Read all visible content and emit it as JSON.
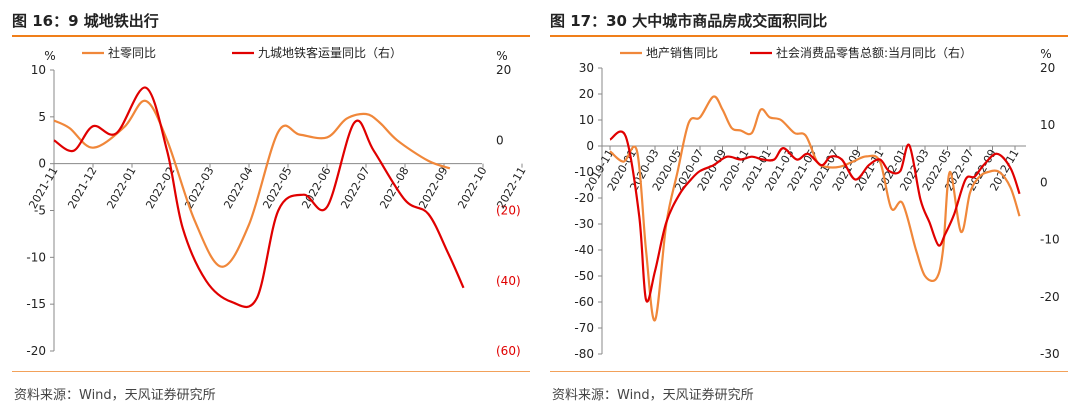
{
  "colors": {
    "orange": "#f0873a",
    "red": "#e00000",
    "accent": "#f07f1a"
  },
  "charts": [
    {
      "id": "left",
      "title": "图 16：9 城地铁出行",
      "source": "资料来源：Wind，天风证券研究所",
      "chart_data": {
        "type": "line",
        "x": [
          "2021-11",
          "2021-12",
          "2022-01",
          "2022-02",
          "2022-03",
          "2022-04",
          "2022-05",
          "2022-06",
          "2022-07",
          "2022-08",
          "2022-09",
          "2022-10",
          "2022-11"
        ],
        "yleft": {
          "unit": "%",
          "ylim": [
            -20,
            10
          ],
          "ticks": [
            {
              "v": 10,
              "t": "10"
            },
            {
              "v": 5,
              "t": "5"
            },
            {
              "v": 0,
              "t": "0"
            },
            {
              "v": -5,
              "t": "-5"
            },
            {
              "v": -10,
              "t": "-10"
            },
            {
              "v": -15,
              "t": "-15"
            },
            {
              "v": -20,
              "t": "-20"
            }
          ]
        },
        "yright": {
          "unit": "%",
          "ylim": [
            -60,
            20
          ],
          "ticks": [
            {
              "v": 20,
              "t": "20"
            },
            {
              "v": 0,
              "t": "0"
            },
            {
              "v": -20,
              "t": "(20)"
            },
            {
              "v": -40,
              "t": "(40)"
            },
            {
              "v": -60,
              "t": "(60)"
            }
          ]
        },
        "legend": "top",
        "grid": false,
        "series": [
          {
            "name": "社零同比",
            "axis": "left",
            "color": "#f0873a",
            "x": [
              0,
              0.4,
              1,
              1.8,
              2.35,
              2.9,
              3.6,
              4.3,
              5,
              5.75,
              6.3,
              7,
              7.5,
              8,
              8.35,
              8.8,
              9.6,
              10.15
            ],
            "y": [
              4.6,
              3.8,
              1.7,
              3.9,
              6.7,
              2.5,
              -6,
              -11,
              -6.5,
              3.4,
              3.1,
              2.8,
              4.8,
              5.3,
              4.4,
              2.5,
              0.3,
              -0.5
            ]
          },
          {
            "name": "九城地铁客运量同比（右）",
            "axis": "right",
            "color": "#e00000",
            "x": [
              0,
              0.5,
              1.0,
              1.6,
              2.35,
              2.9,
              3.3,
              3.9,
              4.55,
              5.2,
              5.75,
              6.4,
              7,
              7.7,
              8.2,
              9,
              9.6,
              10.1,
              10.5
            ],
            "y": [
              0,
              -3,
              4,
              2,
              15,
              -3,
              -25,
              -40,
              -46,
              -45,
              -20,
              -15.5,
              -19,
              5,
              -3,
              -17,
              -21,
              -32,
              -42
            ]
          }
        ]
      },
      "legend_items": [
        "社零同比",
        "九城地铁客运量同比（右）"
      ]
    },
    {
      "id": "right",
      "title": "图 17：30 大中城市商品房成交面积同比",
      "source": "资料来源：Wind，天风证券研究所",
      "chart_data": {
        "type": "line",
        "x": [
          "2019-11",
          "2020-01",
          "2020-03",
          "2020-05",
          "2020-07",
          "2020-09",
          "2020-11",
          "2021-01",
          "2021-03",
          "2021-05",
          "2021-07",
          "2021-09",
          "2021-11",
          "2022-01",
          "2022-03",
          "2022-05",
          "2022-07",
          "2022-09",
          "2022-11"
        ],
        "yleft": {
          "unit": "",
          "ylim": [
            -80,
            30
          ],
          "ticks": [
            {
              "v": 30,
              "t": "30"
            },
            {
              "v": 20,
              "t": "20"
            },
            {
              "v": 10,
              "t": "10"
            },
            {
              "v": 0,
              "t": "0"
            },
            {
              "v": -10,
              "t": "-10"
            },
            {
              "v": -20,
              "t": "-20"
            },
            {
              "v": -30,
              "t": "-30"
            },
            {
              "v": -40,
              "t": "-40"
            },
            {
              "v": -50,
              "t": "-50"
            },
            {
              "v": -60,
              "t": "-60"
            },
            {
              "v": -70,
              "t": "-70"
            },
            {
              "v": -80,
              "t": "-80"
            }
          ]
        },
        "yright": {
          "unit": "%",
          "ylim": [
            -30,
            20
          ],
          "ticks": [
            {
              "v": 20,
              "t": "20"
            },
            {
              "v": 10,
              "t": "10"
            },
            {
              "v": 0,
              "t": "0"
            },
            {
              "v": -10,
              "t": "-10"
            },
            {
              "v": -20,
              "t": "-20"
            },
            {
              "v": -30,
              "t": "-30"
            }
          ]
        },
        "legend": "top",
        "grid": false,
        "series": [
          {
            "name": "地产销售同比",
            "axis": "left",
            "color": "#f0873a",
            "x": [
              0,
              0.6,
              1.2,
              1.6,
              2.0,
              2.5,
              3,
              3.5,
              4,
              4.6,
              5,
              5.4,
              5.8,
              6.3,
              6.7,
              7.1,
              7.6,
              8.2,
              8.7,
              9.2,
              9.6,
              10.2,
              10.8,
              11.4,
              12,
              12.5,
              13,
              13.6,
              14,
              14.5,
              14.8,
              15.1,
              15.6,
              16,
              16.4,
              16.8,
              17.3,
              17.8,
              18.2
            ],
            "y": [
              -2,
              -6,
              -2,
              -40,
              -67,
              -30,
              -10,
              9,
              11,
              19,
              14,
              7,
              6,
              5,
              14,
              11,
              10,
              5,
              4,
              -6,
              -8,
              -8,
              -6,
              -4,
              -6,
              -24,
              -22,
              -40,
              -50,
              -51,
              -40,
              -10,
              -33,
              -18,
              -12,
              -10,
              -10,
              -16,
              -27
            ]
          },
          {
            "name": "社会消费品零售总额:当月同比（右）",
            "axis": "right",
            "color": "#e00000",
            "x": [
              0,
              0.7,
              1.3,
              1.6,
              2.0,
              2.5,
              3.1,
              3.6,
              4,
              4.6,
              5.2,
              5.8,
              6.3,
              6.8,
              7.3,
              7.7,
              8.3,
              8.8,
              9.4,
              9.8,
              10.3,
              10.9,
              11.5,
              12,
              12.4,
              12.9,
              13.3,
              13.8,
              14.2,
              14.6,
              14.9,
              15.3,
              15.8,
              16.2,
              16.6,
              17.2,
              17.8,
              18.2
            ],
            "y": [
              7.5,
              8,
              -6,
              -20.5,
              -15.5,
              -7,
              -2,
              0.5,
              2,
              3,
              4.5,
              4,
              4.5,
              4,
              4,
              6,
              4,
              5,
              3,
              4.5,
              4,
              0.5,
              3,
              4,
              2,
              2,
              6.5,
              -3,
              -7,
              -11,
              -9,
              -5.5,
              0.5,
              1,
              3,
              5,
              2.5,
              -2
            ]
          }
        ]
      },
      "legend_items": [
        "地产销售同比",
        "社会消费品零售总额:当月同比（右）"
      ]
    }
  ]
}
